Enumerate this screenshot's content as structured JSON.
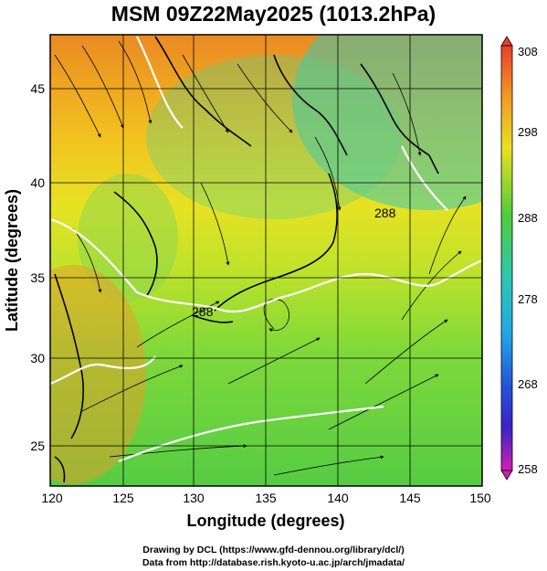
{
  "title": "MSM 09Z22May2025 (1013.2hPa)",
  "map": {
    "lon_range": [
      120,
      150
    ],
    "lat_range": [
      22.4,
      47.6
    ],
    "xlabel": "Longitude (degrees)",
    "ylabel": "Latitude  (degrees)",
    "x_ticks": [
      "120",
      "125",
      "130",
      "135",
      "140",
      "145",
      "150"
    ],
    "y_ticks": [
      "25",
      "30",
      "35",
      "40",
      "45"
    ],
    "grid": true,
    "field": "temperature with streamlines",
    "contour_labels": [
      "288",
      "288"
    ]
  },
  "colorbar": {
    "min": 258,
    "max": 308,
    "ticks": [
      "308",
      "298",
      "288",
      "278",
      "268",
      "258"
    ]
  },
  "credits": {
    "line1": "Drawing by DCL (https://www.gfd-dennou.org/library/dcl/)",
    "line2": "Data from http://database.rish.kyoto-u.ac.jp/arch/jmadata/"
  }
}
